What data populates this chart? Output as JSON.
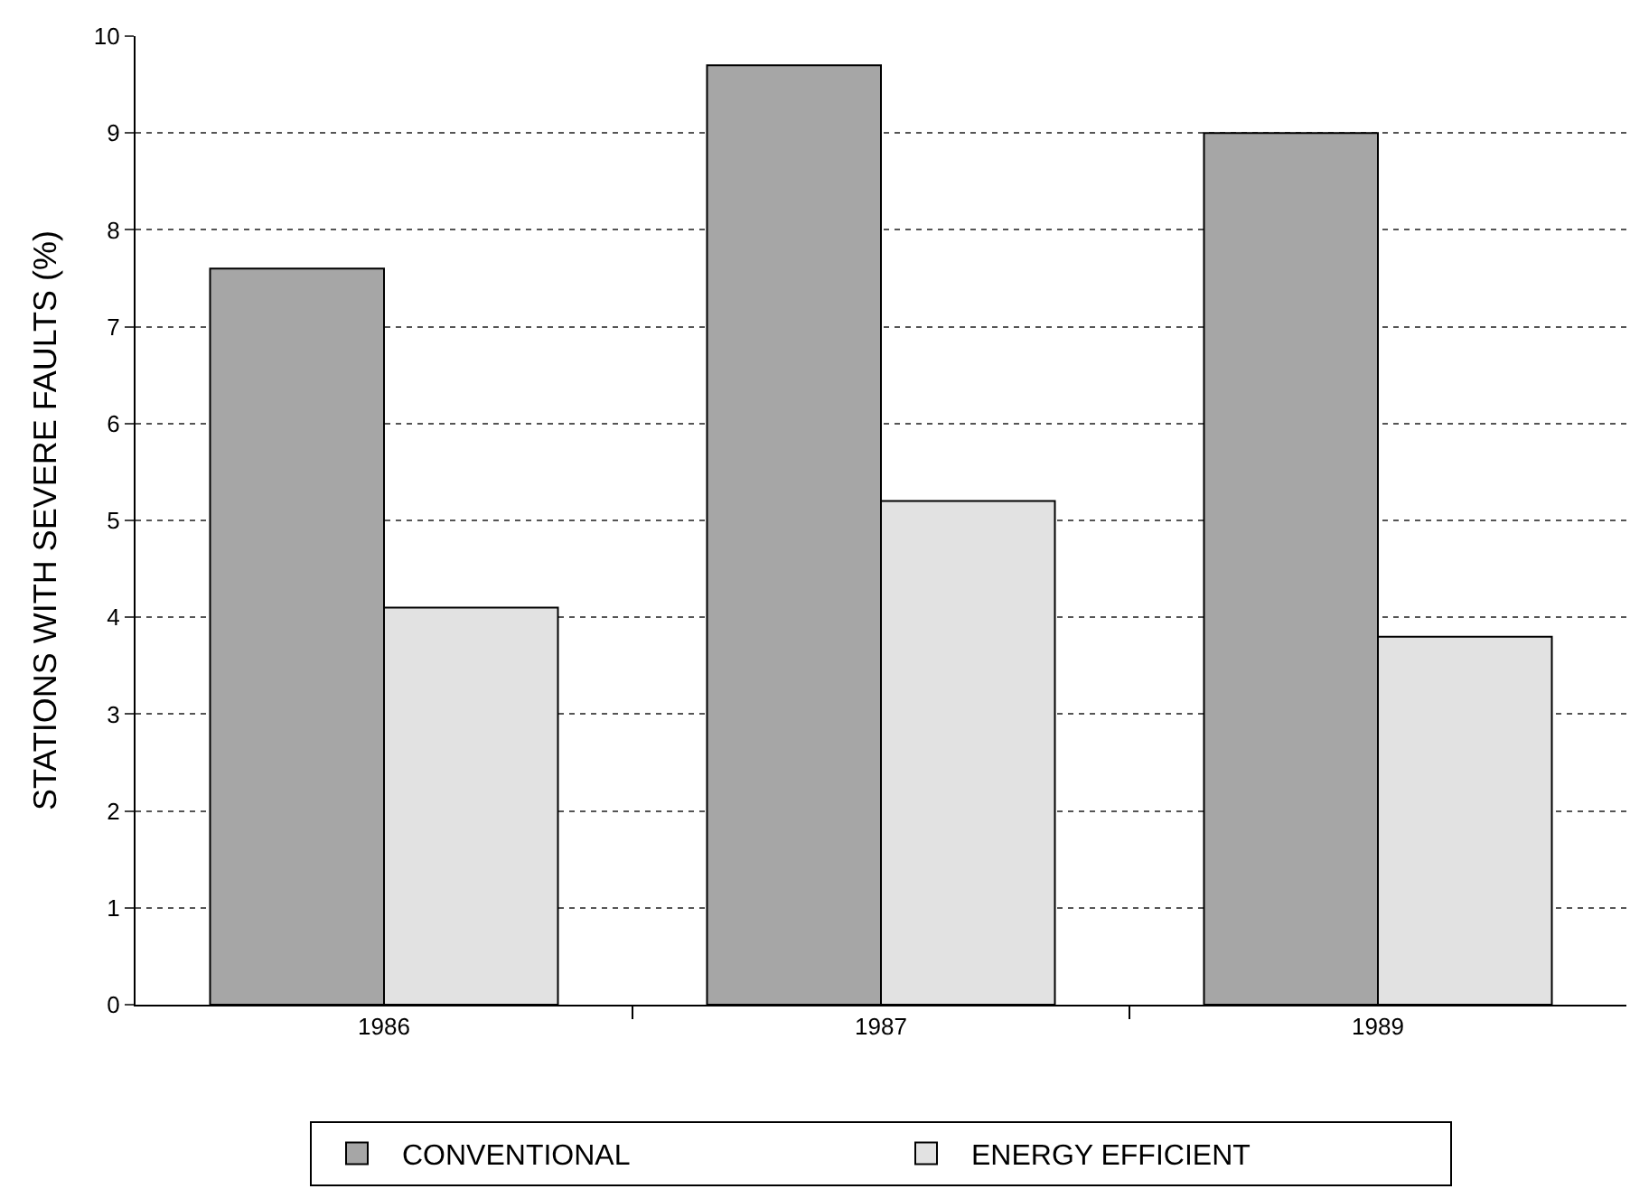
{
  "chart_data": {
    "type": "bar",
    "ylabel": "STATIONS WITH SEVERE FAULTS (%)",
    "categories": [
      "1986",
      "1987",
      "1989"
    ],
    "series": [
      {
        "name": "CONVENTIONAL",
        "color": "#a6a6a6",
        "values": [
          7.6,
          9.7,
          9.0
        ]
      },
      {
        "name": "ENERGY EFFICIENT",
        "color": "#e2e2e2",
        "values": [
          4.1,
          5.2,
          3.8
        ]
      }
    ],
    "ylim": [
      0,
      10
    ],
    "yticks": [
      0,
      1,
      2,
      3,
      4,
      5,
      6,
      7,
      8,
      9,
      10
    ],
    "grid": "y",
    "legend": "bottom"
  }
}
